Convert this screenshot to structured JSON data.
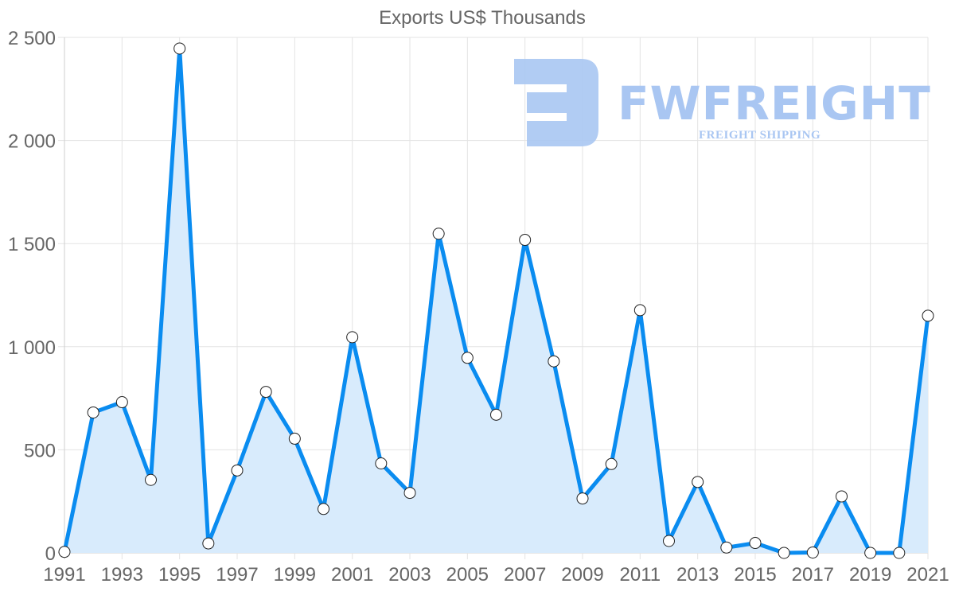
{
  "chart_data": {
    "type": "area",
    "title": "Exports US$ Thousands",
    "xlabel": "",
    "ylabel": "",
    "x": [
      1991,
      1992,
      1993,
      1994,
      1995,
      1996,
      1997,
      1998,
      1999,
      2000,
      2001,
      2002,
      2003,
      2004,
      2005,
      2006,
      2007,
      2008,
      2009,
      2010,
      2011,
      2012,
      2013,
      2014,
      2015,
      2016,
      2017,
      2018,
      2019,
      2020,
      2021
    ],
    "series": [
      {
        "name": "Exports US$ Thousands",
        "values": [
          5,
          681,
          731,
          354,
          2446,
          46,
          400,
          781,
          554,
          213,
          1046,
          434,
          291,
          1548,
          946,
          670,
          1518,
          929,
          264,
          431,
          1177,
          58,
          344,
          26,
          48,
          0,
          2,
          274,
          0,
          0,
          1150
        ],
        "color": "#0a8cf0",
        "fill": "#d8ebfc"
      }
    ],
    "x_tick_labels": [
      "1991",
      "1993",
      "1995",
      "1997",
      "1999",
      "2001",
      "2003",
      "2005",
      "2007",
      "2009",
      "2011",
      "2013",
      "2015",
      "2017",
      "2019",
      "2021"
    ],
    "y_tick_labels": [
      "0",
      "500",
      "1 000",
      "1 500",
      "2 000",
      "2 500"
    ],
    "y_ticks": [
      0,
      500,
      1000,
      1500,
      2000,
      2500
    ],
    "ylim": [
      0,
      2500
    ],
    "grid": true,
    "legend": "none"
  },
  "watermark": {
    "brand": "FWFREIGHT",
    "tagline": "FREIGHT SHIPPING",
    "color": "#a9c6f2"
  }
}
